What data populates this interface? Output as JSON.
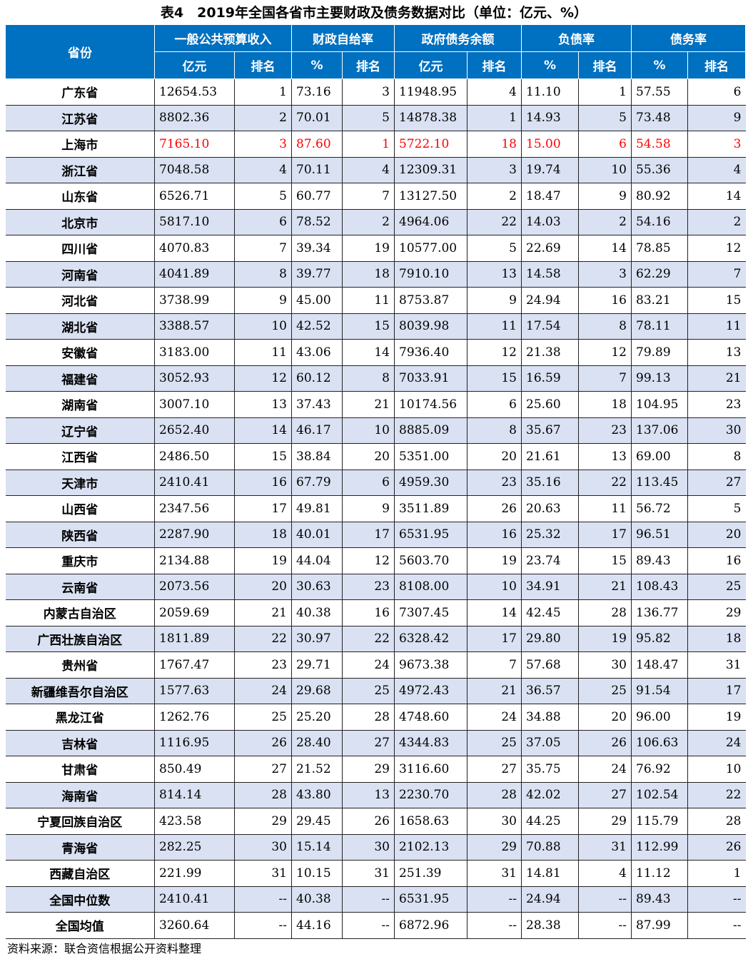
{
  "title": "表4　2019年全国各省市主要财政及债务数据对比（单位：亿元、%）",
  "colors": {
    "header_bg": "#0070C0",
    "alt_row_bg": "#D9E1F2",
    "highlight_text": "#FF0000"
  },
  "header": {
    "province": "省份",
    "groups": [
      "一般公共预算收入",
      "财政自给率",
      "政府债务余额",
      "负债率",
      "债务率"
    ],
    "subheaders": [
      "亿元",
      "排名",
      "%",
      "排名",
      "亿元",
      "排名",
      "%",
      "排名",
      "%",
      "排名"
    ]
  },
  "highlight_row": "上海市",
  "rows": [
    [
      "广东省",
      "12654.53",
      "1",
      "73.16",
      "3",
      "11948.95",
      "4",
      "11.10",
      "1",
      "57.55",
      "6"
    ],
    [
      "江苏省",
      "8802.36",
      "2",
      "70.01",
      "5",
      "14878.38",
      "1",
      "14.93",
      "5",
      "73.48",
      "9"
    ],
    [
      "上海市",
      "7165.10",
      "3",
      "87.60",
      "1",
      "5722.10",
      "18",
      "15.00",
      "6",
      "54.58",
      "3"
    ],
    [
      "浙江省",
      "7048.58",
      "4",
      "70.11",
      "4",
      "12309.31",
      "3",
      "19.74",
      "10",
      "55.36",
      "4"
    ],
    [
      "山东省",
      "6526.71",
      "5",
      "60.77",
      "7",
      "13127.50",
      "2",
      "18.47",
      "9",
      "80.92",
      "14"
    ],
    [
      "北京市",
      "5817.10",
      "6",
      "78.52",
      "2",
      "4964.06",
      "22",
      "14.03",
      "2",
      "54.16",
      "2"
    ],
    [
      "四川省",
      "4070.83",
      "7",
      "39.34",
      "19",
      "10577.00",
      "5",
      "22.69",
      "14",
      "78.85",
      "12"
    ],
    [
      "河南省",
      "4041.89",
      "8",
      "39.77",
      "18",
      "7910.10",
      "13",
      "14.58",
      "3",
      "62.29",
      "7"
    ],
    [
      "河北省",
      "3738.99",
      "9",
      "45.00",
      "11",
      "8753.87",
      "9",
      "24.94",
      "16",
      "83.21",
      "15"
    ],
    [
      "湖北省",
      "3388.57",
      "10",
      "42.52",
      "15",
      "8039.98",
      "11",
      "17.54",
      "8",
      "78.11",
      "11"
    ],
    [
      "安徽省",
      "3183.00",
      "11",
      "43.06",
      "14",
      "7936.40",
      "12",
      "21.38",
      "12",
      "79.89",
      "13"
    ],
    [
      "福建省",
      "3052.93",
      "12",
      "60.12",
      "8",
      "7033.91",
      "15",
      "16.59",
      "7",
      "99.13",
      "21"
    ],
    [
      "湖南省",
      "3007.10",
      "13",
      "37.43",
      "21",
      "10174.56",
      "6",
      "25.60",
      "18",
      "104.95",
      "23"
    ],
    [
      "辽宁省",
      "2652.40",
      "14",
      "46.17",
      "10",
      "8885.09",
      "8",
      "35.67",
      "23",
      "137.06",
      "30"
    ],
    [
      "江西省",
      "2486.50",
      "15",
      "38.84",
      "20",
      "5351.00",
      "20",
      "21.61",
      "13",
      "69.00",
      "8"
    ],
    [
      "天津市",
      "2410.41",
      "16",
      "67.79",
      "6",
      "4959.30",
      "23",
      "35.16",
      "22",
      "113.45",
      "27"
    ],
    [
      "山西省",
      "2347.56",
      "17",
      "49.81",
      "9",
      "3511.89",
      "26",
      "20.63",
      "11",
      "56.72",
      "5"
    ],
    [
      "陕西省",
      "2287.90",
      "18",
      "40.01",
      "17",
      "6531.95",
      "16",
      "25.32",
      "17",
      "96.51",
      "20"
    ],
    [
      "重庆市",
      "2134.88",
      "19",
      "44.04",
      "12",
      "5603.70",
      "19",
      "23.74",
      "15",
      "89.43",
      "16"
    ],
    [
      "云南省",
      "2073.56",
      "20",
      "30.63",
      "23",
      "8108.00",
      "10",
      "34.91",
      "21",
      "108.43",
      "25"
    ],
    [
      "内蒙古自治区",
      "2059.69",
      "21",
      "40.38",
      "16",
      "7307.45",
      "14",
      "42.45",
      "28",
      "136.77",
      "29"
    ],
    [
      "广西壮族自治区",
      "1811.89",
      "22",
      "30.97",
      "22",
      "6328.42",
      "17",
      "29.80",
      "19",
      "95.82",
      "18"
    ],
    [
      "贵州省",
      "1767.47",
      "23",
      "29.71",
      "24",
      "9673.38",
      "7",
      "57.68",
      "30",
      "148.47",
      "31"
    ],
    [
      "新疆维吾尔自治区",
      "1577.63",
      "24",
      "29.68",
      "25",
      "4972.43",
      "21",
      "36.57",
      "25",
      "91.54",
      "17"
    ],
    [
      "黑龙江省",
      "1262.76",
      "25",
      "25.20",
      "28",
      "4748.60",
      "24",
      "34.88",
      "20",
      "96.00",
      "19"
    ],
    [
      "吉林省",
      "1116.95",
      "26",
      "28.40",
      "27",
      "4344.83",
      "25",
      "37.05",
      "26",
      "106.63",
      "24"
    ],
    [
      "甘肃省",
      "850.49",
      "27",
      "21.52",
      "29",
      "3116.60",
      "27",
      "35.75",
      "24",
      "76.92",
      "10"
    ],
    [
      "海南省",
      "814.14",
      "28",
      "43.80",
      "13",
      "2230.70",
      "28",
      "42.02",
      "27",
      "102.54",
      "22"
    ],
    [
      "宁夏回族自治区",
      "423.58",
      "29",
      "29.45",
      "26",
      "1658.63",
      "30",
      "44.25",
      "29",
      "115.79",
      "28"
    ],
    [
      "青海省",
      "282.25",
      "30",
      "15.14",
      "30",
      "2102.13",
      "29",
      "70.88",
      "31",
      "112.99",
      "26"
    ],
    [
      "西藏自治区",
      "221.99",
      "31",
      "10.15",
      "31",
      "251.39",
      "31",
      "14.81",
      "4",
      "11.12",
      "1"
    ],
    [
      "全国中位数",
      "2410.41",
      "--",
      "40.38",
      "--",
      "6531.95",
      "--",
      "24.94",
      "--",
      "89.43",
      "--"
    ],
    [
      "全国均值",
      "3260.64",
      "--",
      "44.16",
      "--",
      "6872.96",
      "--",
      "28.38",
      "--",
      "87.99",
      "--"
    ]
  ],
  "source_note": "资料来源：联合资信根据公开资料整理"
}
